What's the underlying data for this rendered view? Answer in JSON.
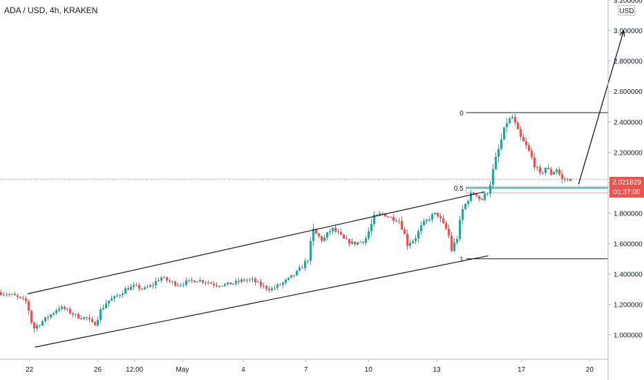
{
  "header": {
    "title": "ADA / USD, 4h, KRAKEN"
  },
  "price_axis": {
    "currency": "USD"
  },
  "colors": {
    "up": "#26a69a",
    "down": "#ef5350",
    "fib": "#26a69a",
    "line": "#131722",
    "price_line": "#ef5350"
  },
  "chart_data": {
    "type": "candlestick",
    "title": "ADA / USD, 4h, KRAKEN",
    "ylim": [
      0.84,
      3.2
    ],
    "y_ticks": [
      "3.200000",
      "3.000000",
      "2.800000",
      "2.600000",
      "2.400000",
      "2.200000",
      "2.000000",
      "1.800000",
      "1.600000",
      "1.400000",
      "1.200000",
      "1.000000"
    ],
    "y_tick_values": [
      3.2,
      3.0,
      2.8,
      2.6,
      2.4,
      2.2,
      2.0,
      1.8,
      1.6,
      1.4,
      1.2,
      1.0
    ],
    "x_tick_labels": [
      "22",
      "26",
      "12:00",
      "May",
      "4",
      "7",
      "10",
      "13",
      "17",
      "20"
    ],
    "x_tick_bars": [
      32,
      106,
      146,
      198,
      264,
      332,
      400,
      474,
      566,
      640
    ],
    "current_price": {
      "value": 2.021829,
      "label": "2.021829",
      "countdown": "01:37:00"
    },
    "fib_levels": [
      {
        "label": "0",
        "value": 2.46
      },
      {
        "label": "0.5",
        "value": 1.965
      },
      {
        "label": "1",
        "value": 1.5
      }
    ],
    "channel": {
      "upper": [
        [
          30,
          1.27
        ],
        [
          526,
          1.94
        ]
      ],
      "lower": [
        [
          38,
          0.92
        ],
        [
          530,
          1.52
        ]
      ]
    },
    "projection": [
      [
        628,
        1.99
      ],
      [
        677,
        3.0
      ]
    ],
    "price_anchors": [
      [
        0,
        1.28
      ],
      [
        16,
        1.26
      ],
      [
        26,
        1.23
      ],
      [
        30,
        1.22
      ],
      [
        32,
        1.19
      ],
      [
        38,
        1.04
      ],
      [
        44,
        1.07
      ],
      [
        56,
        1.13
      ],
      [
        66,
        1.18
      ],
      [
        72,
        1.17
      ],
      [
        86,
        1.12
      ],
      [
        96,
        1.11
      ],
      [
        104,
        1.06
      ],
      [
        110,
        1.15
      ],
      [
        118,
        1.22
      ],
      [
        128,
        1.25
      ],
      [
        138,
        1.3
      ],
      [
        148,
        1.32
      ],
      [
        158,
        1.3
      ],
      [
        168,
        1.33
      ],
      [
        176,
        1.38
      ],
      [
        186,
        1.35
      ],
      [
        196,
        1.33
      ],
      [
        206,
        1.35
      ],
      [
        216,
        1.36
      ],
      [
        226,
        1.35
      ],
      [
        236,
        1.33
      ],
      [
        246,
        1.33
      ],
      [
        256,
        1.34
      ],
      [
        266,
        1.36
      ],
      [
        276,
        1.36
      ],
      [
        286,
        1.32
      ],
      [
        296,
        1.3
      ],
      [
        306,
        1.33
      ],
      [
        316,
        1.37
      ],
      [
        326,
        1.42
      ],
      [
        336,
        1.5
      ],
      [
        342,
        1.68
      ],
      [
        352,
        1.62
      ],
      [
        362,
        1.7
      ],
      [
        370,
        1.66
      ],
      [
        376,
        1.62
      ],
      [
        386,
        1.6
      ],
      [
        398,
        1.62
      ],
      [
        408,
        1.77
      ],
      [
        416,
        1.8
      ],
      [
        426,
        1.77
      ],
      [
        436,
        1.75
      ],
      [
        444,
        1.6
      ],
      [
        452,
        1.63
      ],
      [
        460,
        1.72
      ],
      [
        470,
        1.78
      ],
      [
        476,
        1.8
      ],
      [
        482,
        1.73
      ],
      [
        488,
        1.68
      ],
      [
        492,
        1.56
      ],
      [
        498,
        1.64
      ],
      [
        504,
        1.82
      ],
      [
        512,
        1.92
      ],
      [
        518,
        1.93
      ],
      [
        524,
        1.88
      ],
      [
        532,
        1.95
      ],
      [
        540,
        2.15
      ],
      [
        546,
        2.28
      ],
      [
        552,
        2.4
      ],
      [
        558,
        2.43
      ],
      [
        566,
        2.3
      ],
      [
        574,
        2.23
      ],
      [
        582,
        2.12
      ],
      [
        588,
        2.05
      ],
      [
        594,
        2.1
      ],
      [
        600,
        2.06
      ],
      [
        606,
        2.09
      ],
      [
        612,
        2.02
      ],
      [
        618,
        2.02
      ]
    ]
  }
}
